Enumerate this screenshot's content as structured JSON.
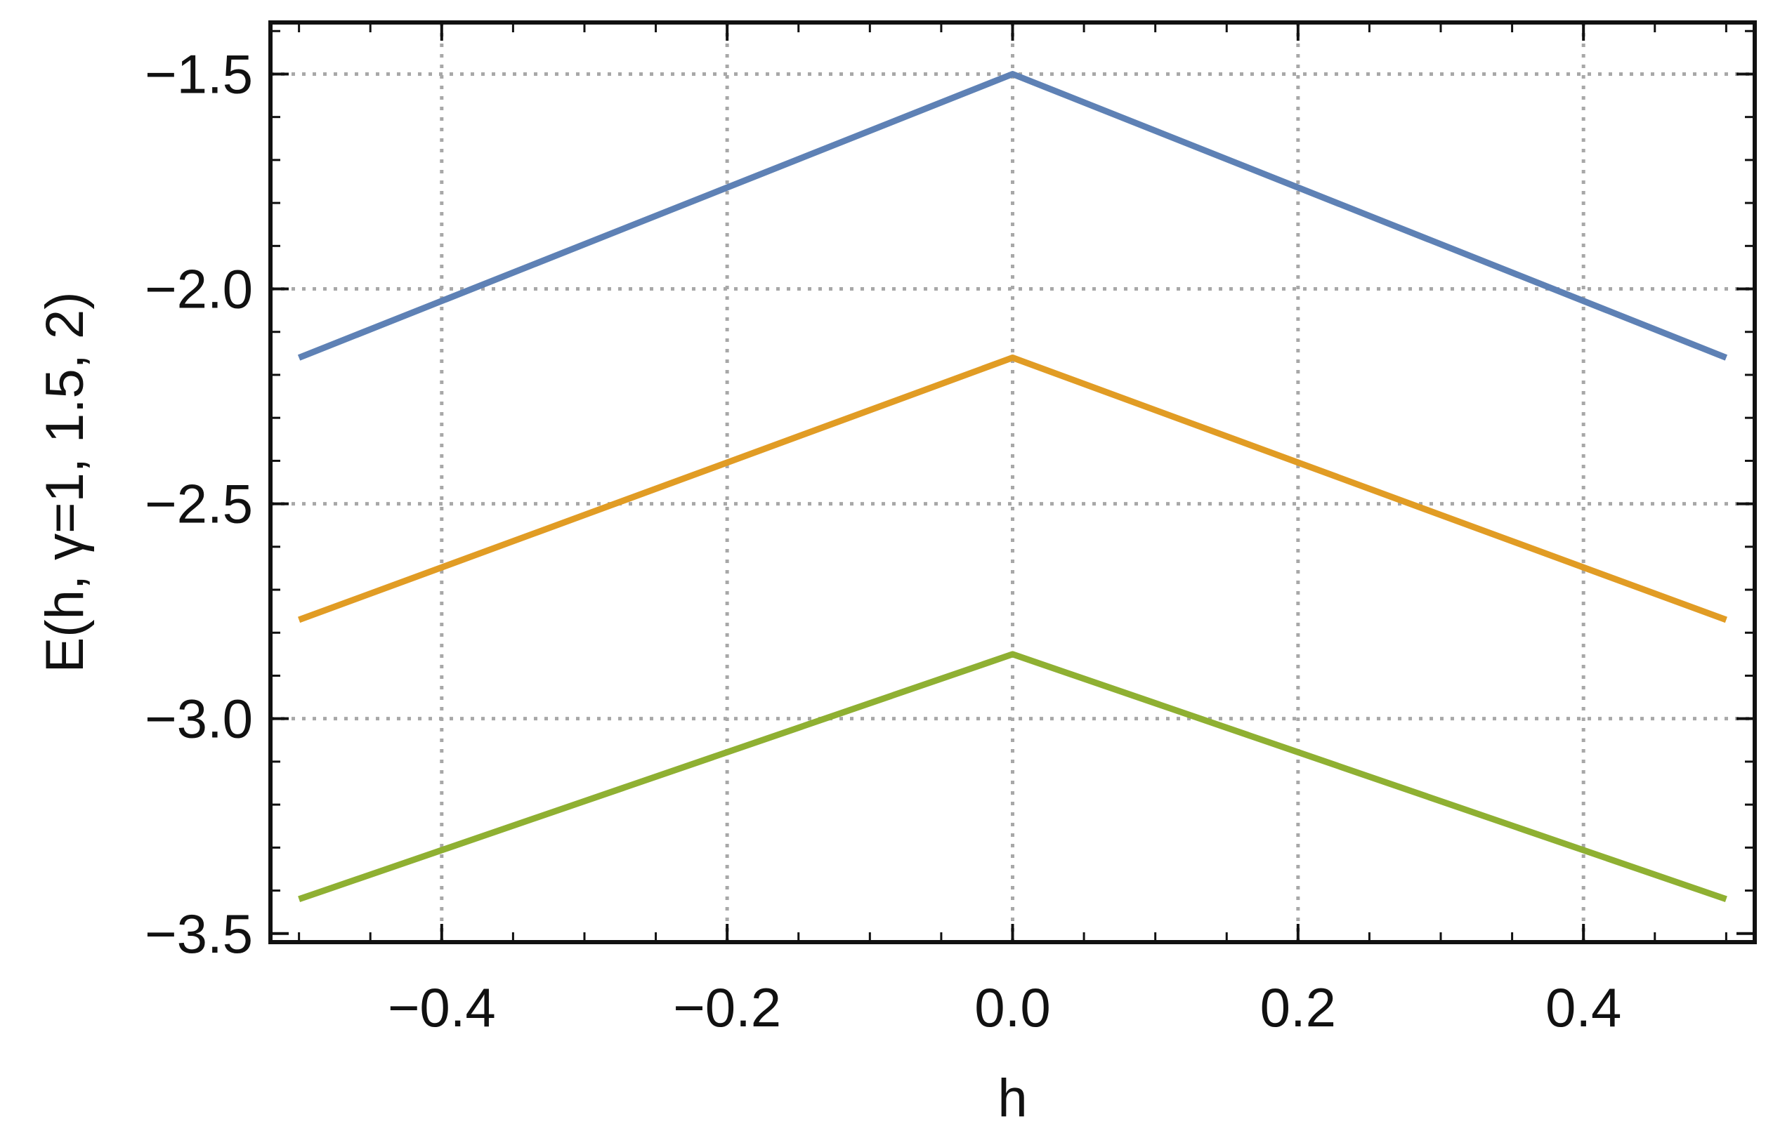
{
  "chart_data": {
    "type": "line",
    "title": "",
    "xlabel": "h",
    "ylabel": "E(h, γ=1, 1.5, 2)",
    "xlim": [
      -0.52,
      0.52
    ],
    "ylim": [
      -3.52,
      -1.38
    ],
    "grid": true,
    "legend": "none",
    "x_ticks": [
      -0.4,
      -0.2,
      0.0,
      0.2,
      0.4
    ],
    "x_tick_labels": [
      "−0.4",
      "−0.2",
      "0.0",
      "0.2",
      "0.4"
    ],
    "y_ticks": [
      -1.5,
      -2.0,
      -2.5,
      -3.0,
      -3.5
    ],
    "y_tick_labels": [
      "−1.5",
      "−2.0",
      "−2.5",
      "−3.0",
      "−3.5"
    ],
    "x_minor_step": 0.05,
    "y_minor_step": 0.1,
    "x": [
      -0.5,
      0.0,
      0.5
    ],
    "series": [
      {
        "color": "#5e81b5",
        "values": [
          -2.16,
          -1.5,
          -2.16
        ]
      },
      {
        "color": "#e19c24",
        "values": [
          -2.77,
          -2.16,
          -2.77
        ]
      },
      {
        "color": "#8fb032",
        "values": [
          -3.42,
          -2.85,
          -3.42
        ]
      }
    ]
  }
}
